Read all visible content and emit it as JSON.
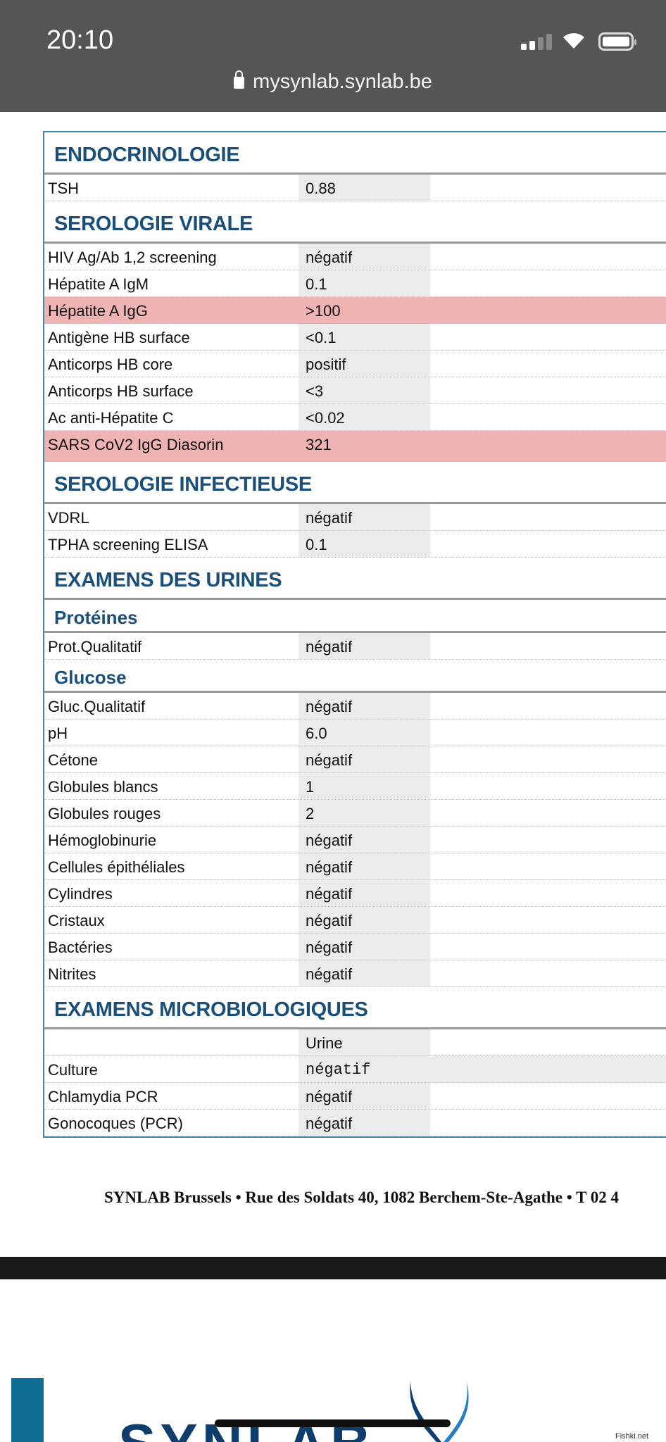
{
  "status_bar": {
    "time": "20:10",
    "icons": [
      "cellular-signal-icon",
      "wifi-icon",
      "battery-icon"
    ]
  },
  "browser": {
    "url": "mysynlab.synlab.be",
    "icon": "lock-icon"
  },
  "sections": [
    {
      "title": "ENDOCRINOLOGIE",
      "rows": [
        {
          "label": "TSH",
          "value": "0.88"
        }
      ]
    },
    {
      "title": "SEROLOGIE VIRALE",
      "rows": [
        {
          "label": "HIV Ag/Ab 1,2 screening",
          "value": "négatif"
        },
        {
          "label": "Hépatite A IgM",
          "value": "0.1"
        },
        {
          "label": "Hépatite A IgG",
          "value": ">100",
          "highlight": true
        },
        {
          "label": "Antigène HB surface",
          "value": "<0.1"
        },
        {
          "label": "Anticorps HB core",
          "value": "positif"
        },
        {
          "label": "Anticorps HB surface",
          "value": "<3"
        },
        {
          "label": "Ac anti-Hépatite C",
          "value": "<0.02"
        },
        {
          "label": "SARS CoV2 IgG Diasorin",
          "value": "321",
          "highlight": true
        }
      ]
    },
    {
      "title": "SEROLOGIE INFECTIEUSE",
      "rows": [
        {
          "label": "VDRL",
          "value": "négatif"
        },
        {
          "label": "TPHA screening ELISA",
          "value": "0.1"
        }
      ]
    },
    {
      "title": "EXAMENS DES URINES",
      "subsections": [
        {
          "title": "Protéines",
          "rows": [
            {
              "label": "Prot.Qualitatif",
              "value": "négatif"
            }
          ]
        },
        {
          "title": "Glucose",
          "rows": [
            {
              "label": "Gluc.Qualitatif",
              "value": "négatif"
            },
            {
              "label": "pH",
              "value": "6.0"
            },
            {
              "label": "Cétone",
              "value": "négatif"
            },
            {
              "label": "Globules blancs",
              "value": "1"
            },
            {
              "label": "Globules rouges",
              "value": "2"
            },
            {
              "label": "Hémoglobinurie",
              "value": "négatif"
            },
            {
              "label": "Cellules épithéliales",
              "value": "négatif"
            },
            {
              "label": "Cylindres",
              "value": "négatif"
            },
            {
              "label": "Cristaux",
              "value": "négatif"
            },
            {
              "label": "Bactéries",
              "value": "négatif"
            },
            {
              "label": "Nitrites",
              "value": "négatif"
            }
          ]
        }
      ]
    },
    {
      "title": "EXAMENS MICROBIOLOGIQUES",
      "rows": [
        {
          "label": "",
          "value": "Urine"
        },
        {
          "label": "Culture",
          "value": "négatif"
        },
        {
          "label": "Chlamydia PCR",
          "value": "négatif"
        },
        {
          "label": "Gonocoques (PCR)",
          "value": "négatif"
        }
      ]
    }
  ],
  "colors": {
    "heading": "#1a4f7a",
    "highlight": "#f0b3b3",
    "value_bg": "#ebebeb",
    "status_bar": "#555555"
  },
  "footer": "SYNLAB Brussels • Rue des Soldats 40, 1082 Berchem-Ste-Agathe • T 02 4",
  "logo": "SYNLAB",
  "watermark": "Fishki.net"
}
